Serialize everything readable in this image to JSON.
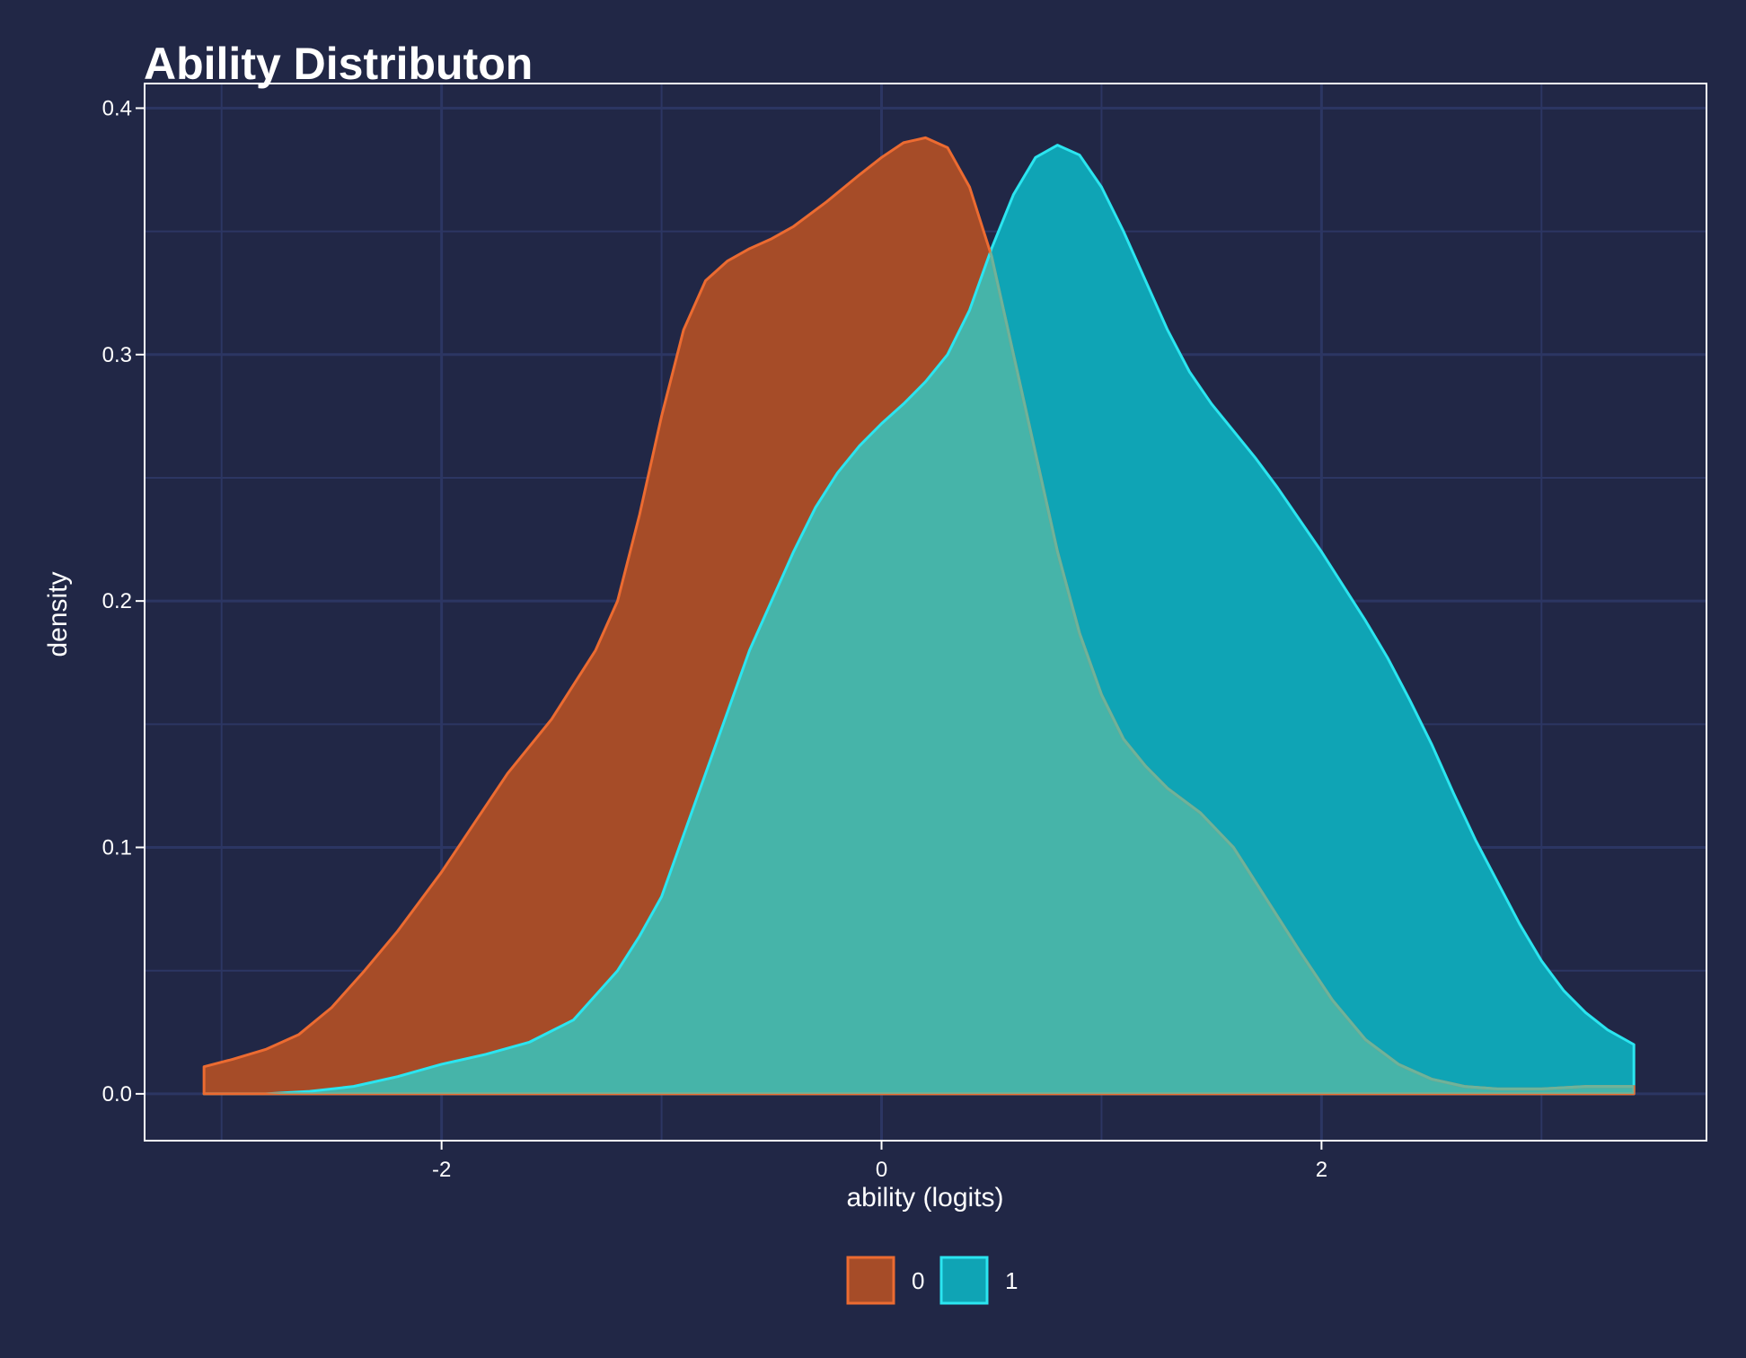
{
  "chart_data": {
    "type": "area",
    "title": "Ability Distributon",
    "xlabel": "ability (logits)",
    "ylabel": "density",
    "xlim": [
      -3.35,
      3.75
    ],
    "ylim": [
      -0.019,
      0.41
    ],
    "x_ticks": [
      -2,
      0,
      2
    ],
    "x_tick_labels": [
      "-2",
      "0",
      "2"
    ],
    "y_ticks": [
      0.0,
      0.1,
      0.2,
      0.3,
      0.4
    ],
    "y_tick_labels": [
      "0.0",
      "0.1",
      "0.2",
      "0.3",
      "0.4"
    ],
    "grid": true,
    "legend_position": "bottom",
    "colors": {
      "background": "#212746",
      "grid": "#2c3663",
      "axis_frame": "#ffffff",
      "overlap": "#46b4a9"
    },
    "series": [
      {
        "name": "0",
        "fill": "#a64c28",
        "stroke": "#ec6b31",
        "x": [
          -3.08,
          -2.95,
          -2.8,
          -2.65,
          -2.5,
          -2.35,
          -2.2,
          -2.0,
          -1.85,
          -1.7,
          -1.5,
          -1.3,
          -1.2,
          -1.1,
          -1.0,
          -0.9,
          -0.8,
          -0.7,
          -0.6,
          -0.5,
          -0.4,
          -0.25,
          -0.1,
          0.0,
          0.1,
          0.2,
          0.3,
          0.4,
          0.5,
          0.6,
          0.7,
          0.8,
          0.9,
          1.0,
          1.1,
          1.2,
          1.3,
          1.45,
          1.6,
          1.75,
          1.9,
          2.05,
          2.2,
          2.35,
          2.5,
          2.65,
          2.8,
          3.0,
          3.2,
          3.42
        ],
        "y": [
          0.011,
          0.014,
          0.018,
          0.024,
          0.035,
          0.05,
          0.066,
          0.09,
          0.11,
          0.13,
          0.152,
          0.18,
          0.2,
          0.235,
          0.275,
          0.31,
          0.33,
          0.338,
          0.343,
          0.347,
          0.352,
          0.362,
          0.373,
          0.38,
          0.386,
          0.388,
          0.384,
          0.368,
          0.34,
          0.3,
          0.26,
          0.22,
          0.187,
          0.162,
          0.144,
          0.133,
          0.124,
          0.114,
          0.1,
          0.079,
          0.058,
          0.038,
          0.022,
          0.012,
          0.006,
          0.003,
          0.002,
          0.002,
          0.003,
          0.003
        ]
      },
      {
        "name": "1",
        "fill": "#0fa4b5",
        "stroke": "#2be5f0",
        "x": [
          -3.08,
          -2.8,
          -2.6,
          -2.4,
          -2.2,
          -2.0,
          -1.8,
          -1.6,
          -1.4,
          -1.2,
          -1.1,
          -1.0,
          -0.9,
          -0.8,
          -0.7,
          -0.6,
          -0.5,
          -0.4,
          -0.3,
          -0.2,
          -0.1,
          0.0,
          0.1,
          0.2,
          0.3,
          0.4,
          0.5,
          0.6,
          0.7,
          0.8,
          0.9,
          1.0,
          1.1,
          1.2,
          1.3,
          1.4,
          1.5,
          1.6,
          1.7,
          1.8,
          1.9,
          2.0,
          2.1,
          2.2,
          2.3,
          2.4,
          2.5,
          2.6,
          2.7,
          2.8,
          2.9,
          3.0,
          3.1,
          3.2,
          3.3,
          3.42
        ],
        "y": [
          0.0,
          0.0,
          0.001,
          0.003,
          0.007,
          0.012,
          0.016,
          0.021,
          0.03,
          0.05,
          0.064,
          0.08,
          0.105,
          0.13,
          0.155,
          0.18,
          0.2,
          0.22,
          0.238,
          0.252,
          0.263,
          0.272,
          0.28,
          0.289,
          0.3,
          0.318,
          0.343,
          0.365,
          0.38,
          0.385,
          0.381,
          0.368,
          0.35,
          0.33,
          0.31,
          0.293,
          0.28,
          0.269,
          0.258,
          0.246,
          0.233,
          0.22,
          0.206,
          0.192,
          0.177,
          0.16,
          0.142,
          0.122,
          0.103,
          0.086,
          0.069,
          0.054,
          0.042,
          0.033,
          0.026,
          0.02
        ]
      }
    ]
  }
}
